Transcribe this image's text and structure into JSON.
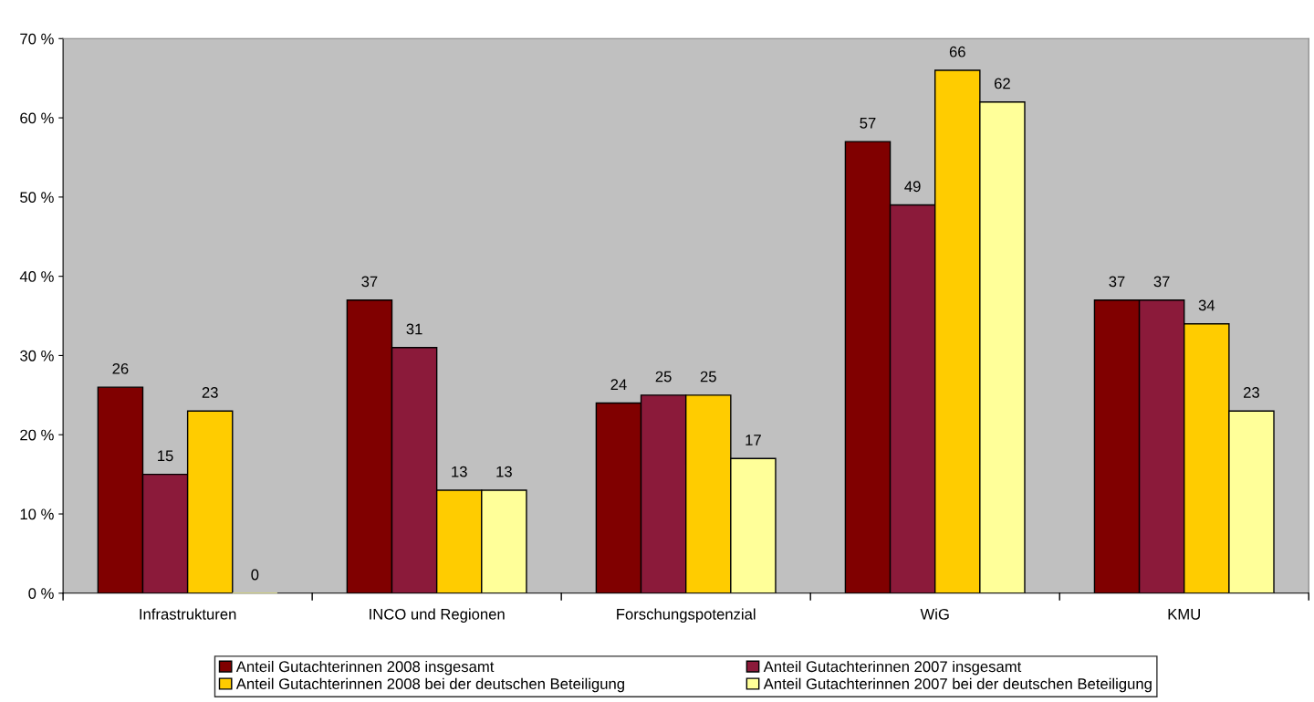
{
  "chart_data": {
    "type": "bar",
    "categories": [
      "Infrastrukturen",
      "INCO und Regionen",
      "Forschungspotenzial",
      "WiG",
      "KMU"
    ],
    "series": [
      {
        "name": "Anteil Gutachterinnen 2008 insgesamt",
        "color": "#800000",
        "values": [
          26,
          37,
          24,
          57,
          37
        ]
      },
      {
        "name": "Anteil Gutachterinnen 2007 insgesamt",
        "color": "#8b1a3a",
        "values": [
          15,
          31,
          25,
          49,
          37
        ]
      },
      {
        "name": "Anteil Gutachterinnen 2008 bei der deutschen Beteiligung",
        "color": "#ffcc00",
        "values": [
          23,
          13,
          25,
          66,
          34
        ]
      },
      {
        "name": "Anteil Gutachterinnen 2007 bei der deutschen Beteiligung",
        "color": "#ffff99",
        "values": [
          0,
          13,
          17,
          62,
          23
        ]
      }
    ],
    "ylim": [
      0,
      70
    ],
    "yticks": [
      {
        "value": 0,
        "label": "0 %"
      },
      {
        "value": 10,
        "label": "10 %"
      },
      {
        "value": 20,
        "label": "20 %"
      },
      {
        "value": 30,
        "label": "30 %"
      },
      {
        "value": 40,
        "label": "40 %"
      },
      {
        "value": 50,
        "label": "50 %"
      },
      {
        "value": 60,
        "label": "60 %"
      },
      {
        "value": 70,
        "label": "70 %"
      }
    ],
    "data_labels": true,
    "grid": false,
    "legend": "bottom"
  }
}
